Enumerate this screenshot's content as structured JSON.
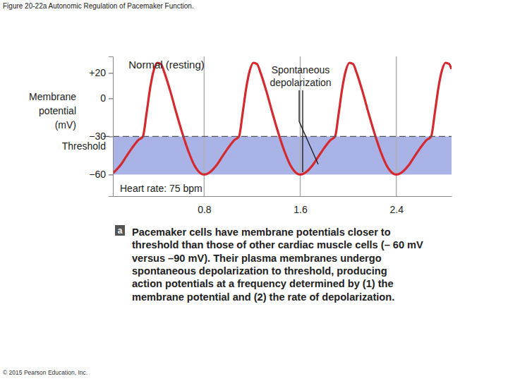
{
  "chart_data": {
    "type": "line",
    "title": "Figure 20-22a Autonomic Regulation of Pacemaker Function.",
    "y_label": "Membrane potential (mV)",
    "x": [
      0.04,
      0.1,
      0.15,
      0.2,
      0.25,
      0.29,
      0.32,
      0.35,
      0.38,
      0.41,
      0.44,
      0.47,
      0.52,
      0.57,
      0.62,
      0.67,
      0.72,
      0.77,
      0.8,
      0.85,
      0.9,
      0.95,
      1.0,
      1.05,
      1.09,
      1.12,
      1.15,
      1.18,
      1.21,
      1.24,
      1.27,
      1.32,
      1.37,
      1.42,
      1.47,
      1.52,
      1.57,
      1.6,
      1.65,
      1.7,
      1.75,
      1.8,
      1.85,
      1.89,
      1.92,
      1.95,
      1.98,
      2.01,
      2.04,
      2.07,
      2.12,
      2.17,
      2.22,
      2.27,
      2.32,
      2.37,
      2.4,
      2.45,
      2.5,
      2.55,
      2.6,
      2.65,
      2.69,
      2.72,
      2.75,
      2.78,
      2.81,
      2.84,
      2.86
    ],
    "values": [
      -59,
      -53,
      -46,
      -39,
      -33,
      -30,
      -12,
      8,
      22,
      28,
      27,
      20,
      5,
      -12,
      -28,
      -42,
      -53,
      -59,
      -60,
      -58,
      -53,
      -46,
      -39,
      -33,
      -30,
      -12,
      8,
      22,
      28,
      27,
      20,
      5,
      -12,
      -28,
      -42,
      -53,
      -59,
      -60,
      -58,
      -53,
      -46,
      -39,
      -33,
      -30,
      -12,
      8,
      22,
      28,
      27,
      20,
      5,
      -12,
      -28,
      -42,
      -53,
      -59,
      -60,
      -58,
      -53,
      -46,
      -39,
      -33,
      -30,
      -12,
      8,
      22,
      28,
      27,
      23
    ],
    "color": "#d42a2f",
    "xlim": [
      0.04,
      2.86
    ],
    "ylim": [
      -77,
      33
    ],
    "xticks": [
      0.8,
      1.6,
      2.4
    ],
    "yticks": [
      {
        "value": 20,
        "label": "+20"
      },
      0,
      {
        "value": -30,
        "label": "−30"
      },
      {
        "value": -60,
        "label": "−60"
      }
    ],
    "grid": true,
    "threshold": -30,
    "band": [
      -60,
      -30
    ],
    "annotations": [
      "Normal (resting)",
      "Spontaneous depolarization",
      "Heart rate: 75 bpm",
      "Threshold"
    ],
    "caption_letter": "a",
    "caption": [
      "Pacemaker cells have membrane potentials closer to",
      "threshold than those of other cardiac muscle cells (– 60 mV",
      "versus –90 mV). Their plasma membranes undergo",
      "spontaneous depolarization to threshold, producing",
      "action potentials at a frequency determined by (1) the",
      "membrane potential and (2) the rate of depolarization."
    ],
    "copyright": "© 2015 Pearson Education, Inc."
  }
}
